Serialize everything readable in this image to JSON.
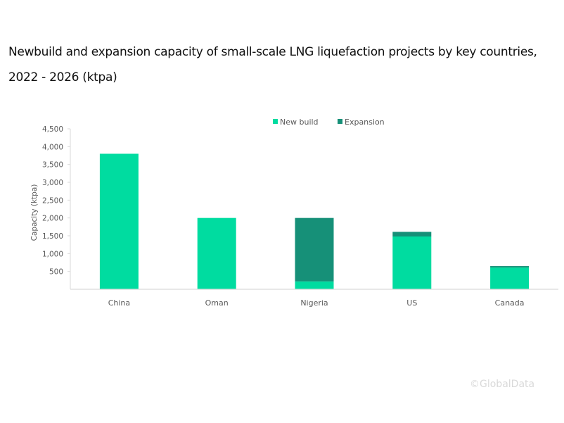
{
  "title_lines": [
    "Newbuild and expansion capacity of small-scale LNG liquefaction projects by key countries,",
    "2022 - 2026 (ktpa)"
  ],
  "watermark": "©GlobalData",
  "chart_data": {
    "type": "bar",
    "stacked": true,
    "title": "Newbuild and expansion capacity of small-scale LNG liquefaction projects by key countries, 2022 - 2026 (ktpa)",
    "xlabel": "",
    "ylabel": "Capacity (ktpa)",
    "ylim": [
      0,
      4500
    ],
    "yticks": [
      500,
      1000,
      1500,
      2000,
      2500,
      3000,
      3500,
      4000,
      4500
    ],
    "ytick_labels": [
      "500",
      "1,000",
      "1,500",
      "2,000",
      "2,500",
      "3,000",
      "3,500",
      "4,000",
      "4,500"
    ],
    "grid": false,
    "legend": "top-center",
    "categories": [
      "China",
      "Oman",
      "Nigeria",
      "US",
      "Canada"
    ],
    "series": [
      {
        "name": "New build",
        "color": "#00DCA0",
        "values": [
          3800,
          2000,
          220,
          1480,
          610
        ]
      },
      {
        "name": "Expansion",
        "color": "#169078",
        "values": [
          0,
          0,
          1780,
          130,
          40
        ]
      }
    ]
  }
}
